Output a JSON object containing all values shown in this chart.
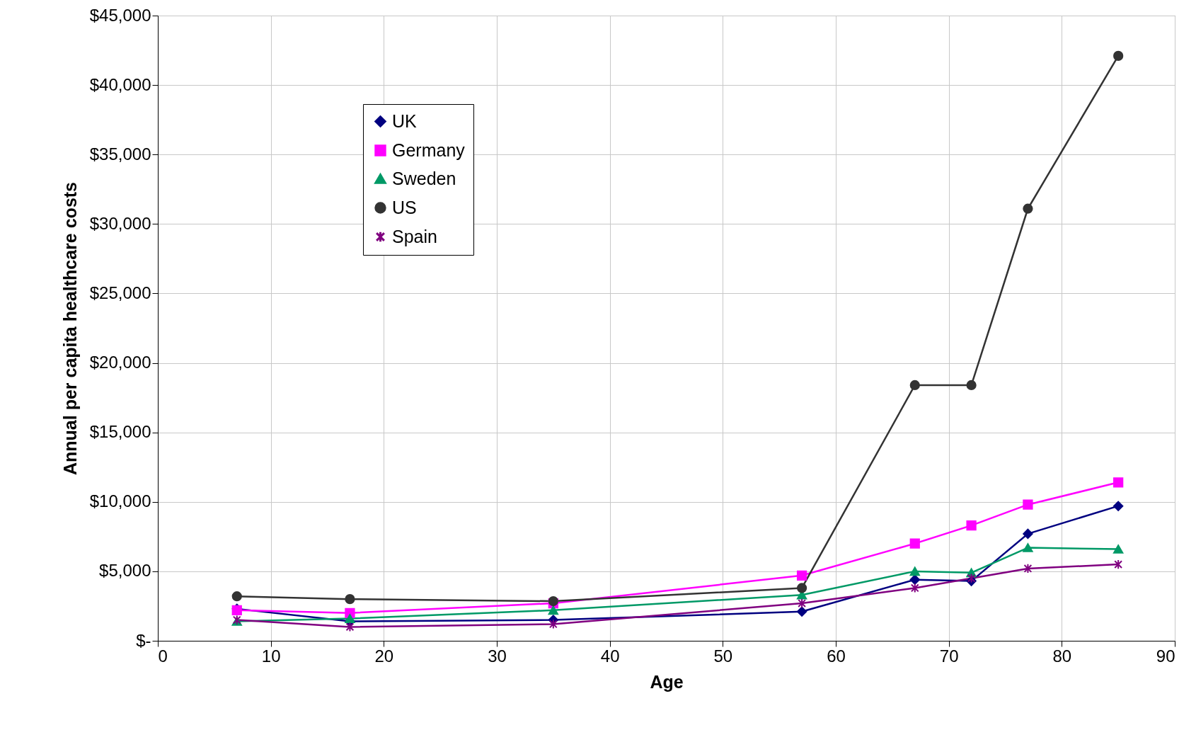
{
  "chart_data": {
    "type": "line",
    "xlabel": "Age",
    "ylabel": "Annual per capita healthcare costs",
    "x": [
      7,
      17,
      35,
      57,
      67,
      72,
      77,
      85
    ],
    "series": [
      {
        "name": "UK",
        "color": "#000080",
        "marker": "diamond",
        "values": [
          2300,
          1400,
          1500,
          2100,
          4400,
          4300,
          7700,
          9700
        ]
      },
      {
        "name": "Germany",
        "color": "#ff00ff",
        "marker": "square",
        "values": [
          2200,
          2000,
          2700,
          4700,
          7000,
          8300,
          9800,
          11400
        ]
      },
      {
        "name": "Sweden",
        "color": "#009966",
        "marker": "triangle",
        "values": [
          1400,
          1600,
          2200,
          3300,
          5000,
          4900,
          6700,
          6600
        ]
      },
      {
        "name": "US",
        "color": "#333333",
        "marker": "circle",
        "values": [
          3200,
          3000,
          2850,
          3800,
          18400,
          18400,
          31100,
          42100
        ]
      },
      {
        "name": "Spain",
        "color": "#800080",
        "marker": "cross",
        "values": [
          1500,
          1000,
          1200,
          2700,
          3800,
          4500,
          5200,
          5500
        ]
      }
    ],
    "xlim": [
      0,
      90
    ],
    "xticks": [
      0,
      10,
      20,
      30,
      40,
      50,
      60,
      70,
      80,
      90
    ],
    "ylim": [
      0,
      45000
    ],
    "yticks": [
      {
        "value": 0,
        "label": "$-"
      },
      {
        "value": 5000,
        "label": "$5,000"
      },
      {
        "value": 10000,
        "label": "$10,000"
      },
      {
        "value": 15000,
        "label": "$15,000"
      },
      {
        "value": 20000,
        "label": "$20,000"
      },
      {
        "value": 25000,
        "label": "$25,000"
      },
      {
        "value": 30000,
        "label": "$30,000"
      },
      {
        "value": 35000,
        "label": "$35,000"
      },
      {
        "value": 40000,
        "label": "$40,000"
      },
      {
        "value": 45000,
        "label": "$45,000"
      }
    ],
    "grid": true,
    "legend": "top left"
  }
}
